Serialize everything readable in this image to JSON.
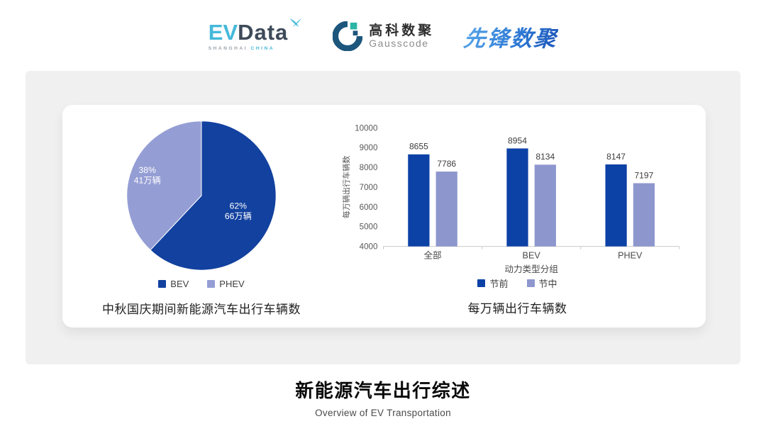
{
  "header": {
    "evdata": {
      "ev": "EV",
      "data": "Data",
      "sub_left": "SHANGHAI",
      "sub_right": "CHINA"
    },
    "gausscode": {
      "cn": "高科数聚",
      "en": "Gausscode"
    },
    "pioneer": {
      "text": "先锋数聚"
    }
  },
  "colors": {
    "series_dark_blue": "#0c41a6",
    "series_light_blue": "#8d97ce",
    "pie_dark_blue": "#12419f",
    "pie_light_blue": "#959ed4",
    "panel_bg": "#f0f0f0",
    "evdata_cyan": "#45b9da",
    "evdata_dark": "#3d4a59",
    "gausscode_navy": "#1d567c",
    "gausscode_teal": "#2bb5a5",
    "pioneer_gradient_start": "#5aa7e8",
    "pioneer_gradient_end": "#1c57ba"
  },
  "chart_data": [
    {
      "type": "pie",
      "title": "中秋国庆期间新能源汽车出行车辆数",
      "start_angle_deg": 0,
      "clockwise": true,
      "legend_position": "bottom",
      "slices": [
        {
          "label": "BEV",
          "percent": 62,
          "percent_label": "62%",
          "count_label": "66万辆",
          "color": "#12419f"
        },
        {
          "label": "PHEV",
          "percent": 38,
          "percent_label": "38%",
          "count_label": "41万辆",
          "color": "#959ed4"
        }
      ]
    },
    {
      "type": "bar",
      "title": "每万辆出行车辆数",
      "categories": [
        "全部",
        "BEV",
        "PHEV"
      ],
      "series": [
        {
          "name": "节前",
          "values": [
            8655,
            8954,
            8147
          ],
          "color": "#0c41a6"
        },
        {
          "name": "节中",
          "values": [
            7786,
            8134,
            7197
          ],
          "color": "#8d97ce"
        }
      ],
      "xlabel": "动力类型分组",
      "ylabel": "每万辆出行车辆数",
      "ylim": [
        4000,
        10000
      ],
      "ytick_step": 1000,
      "grid": false,
      "legend_position": "bottom"
    }
  ],
  "footer": {
    "title": "新能源汽车出行综述",
    "subtitle": "Overview of EV Transportation"
  }
}
